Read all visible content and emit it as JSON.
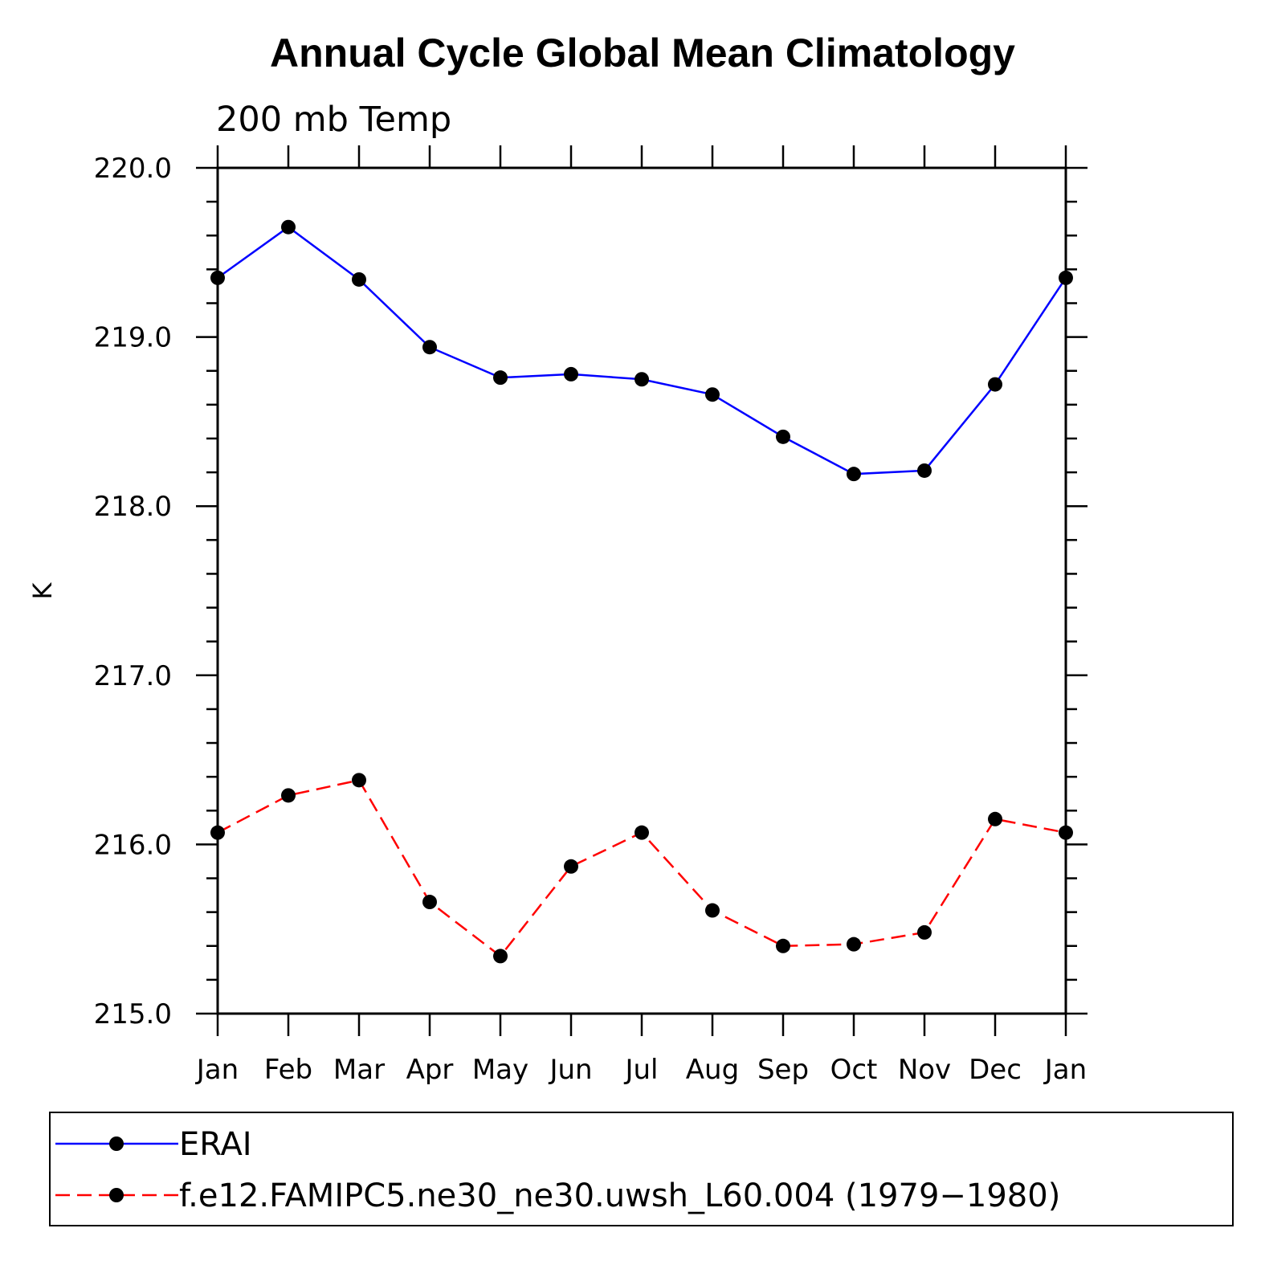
{
  "chart_data": {
    "type": "line",
    "title": "Annual Cycle Global Mean Climatology",
    "subtitle": "200 mb Temp",
    "ylabel": "K",
    "xlabel": "",
    "ylim": [
      215.0,
      220.0
    ],
    "y_ticks": [
      "215.0",
      "216.0",
      "217.0",
      "218.0",
      "219.0",
      "220.0"
    ],
    "categories": [
      "Jan",
      "Feb",
      "Mar",
      "Apr",
      "May",
      "Jun",
      "Jul",
      "Aug",
      "Sep",
      "Oct",
      "Nov",
      "Dec",
      "Jan"
    ],
    "series": [
      {
        "name": "ERAI",
        "color": "#0000ff",
        "style": "solid",
        "values": [
          219.35,
          219.65,
          219.34,
          218.94,
          218.76,
          218.78,
          218.75,
          218.66,
          218.41,
          218.19,
          218.21,
          218.72,
          219.35
        ]
      },
      {
        "name": "f.e12.FAMIPC5.ne30_ne30.uwsh_L60.004 (1979−1980)",
        "color": "#ff0000",
        "style": "dashed",
        "values": [
          216.07,
          216.29,
          216.38,
          215.66,
          215.34,
          215.87,
          216.07,
          215.61,
          215.4,
          215.41,
          215.48,
          216.15,
          216.07
        ]
      }
    ],
    "legend_position": "bottom"
  }
}
